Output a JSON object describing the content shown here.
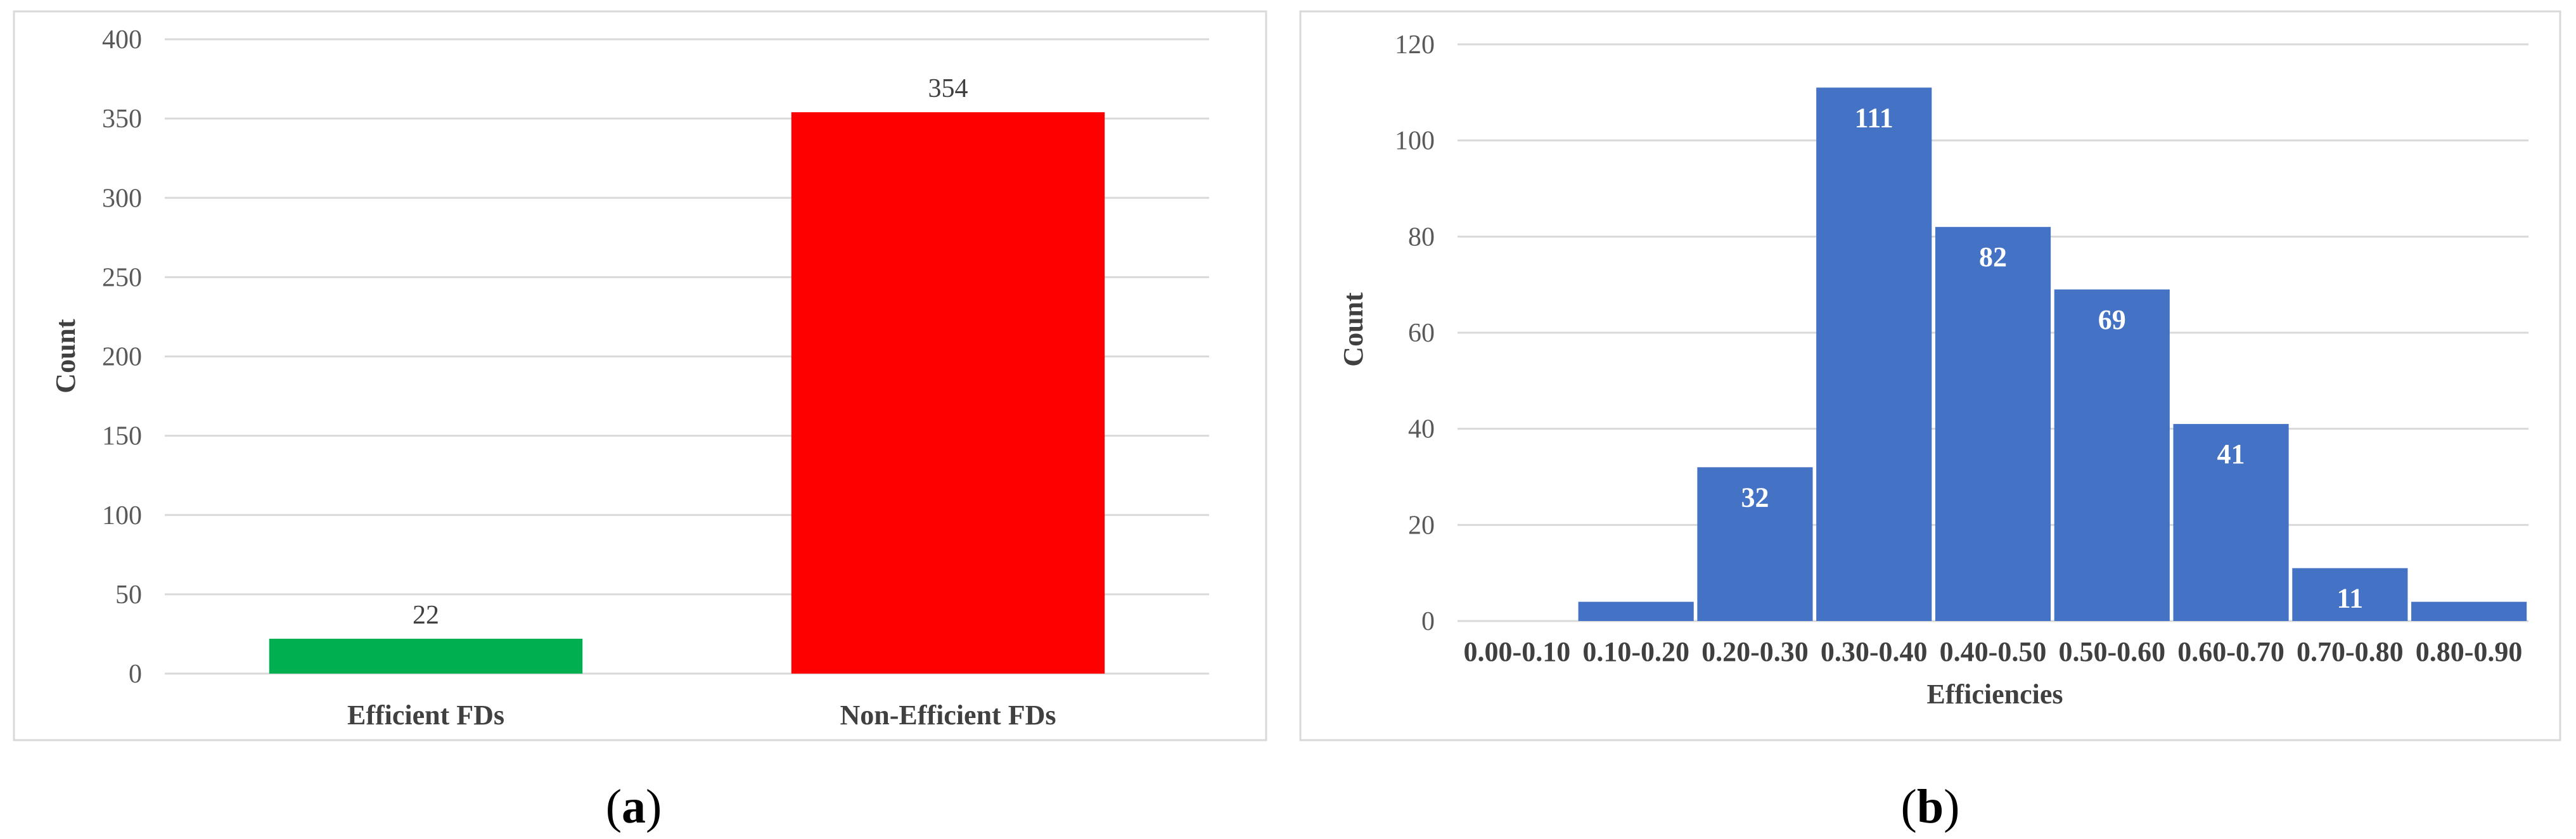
{
  "chart_data": [
    {
      "type": "bar",
      "categories": [
        "Efficient FDs",
        "Non-Efficient FDs"
      ],
      "values": [
        22,
        354
      ],
      "colors": [
        "#00b050",
        "#ff0000"
      ],
      "data_labels": [
        "22",
        "354"
      ],
      "ylabel": "Count",
      "xlabel": "",
      "ylim": [
        0,
        400
      ],
      "yticks": [
        0,
        50,
        100,
        150,
        200,
        250,
        300,
        350,
        400
      ],
      "grid": true,
      "caption": {
        "open": "(",
        "letter": "a",
        "close": ")"
      }
    },
    {
      "type": "bar",
      "categories": [
        "0.00-0.10",
        "0.10-0.20",
        "0.20-0.30",
        "0.30-0.40",
        "0.40-0.50",
        "0.50-0.60",
        "0.60-0.70",
        "0.70-0.80",
        "0.80-0.90"
      ],
      "values": [
        0,
        4,
        32,
        111,
        82,
        69,
        41,
        11,
        4
      ],
      "data_labels": [
        "",
        "",
        "32",
        "111",
        "82",
        "69",
        "41",
        "11",
        ""
      ],
      "color": "#4472c4",
      "ylabel": "Count",
      "xlabel": "Efficiencies",
      "ylim": [
        0,
        120
      ],
      "yticks": [
        0,
        20,
        40,
        60,
        80,
        100,
        120
      ],
      "grid": true,
      "caption": {
        "open": "(",
        "letter": "b",
        "close": ")"
      }
    }
  ]
}
